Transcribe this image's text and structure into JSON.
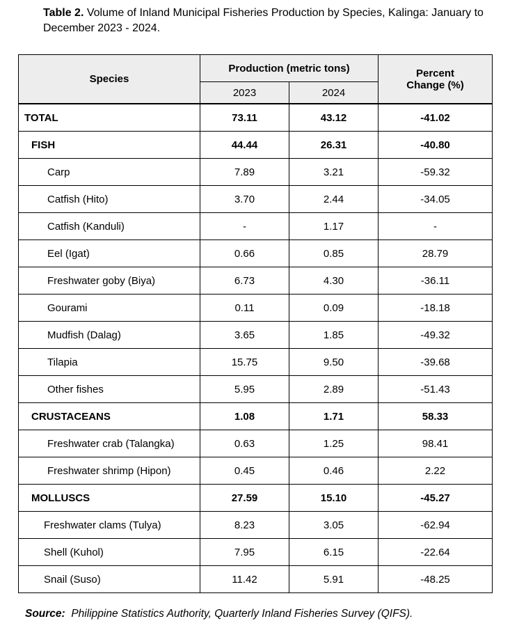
{
  "title": {
    "label": "Table 2.",
    "text": "Volume of Inland Municipal Fisheries Production by Species, Kalinga: January to December 2023 - 2024."
  },
  "table": {
    "headers": {
      "species": "Species",
      "production": "Production (metric tons)",
      "year1": "2023",
      "year2": "2024",
      "percent_change": "Percent Change (%)"
    },
    "rows": [
      {
        "level": "total",
        "species": "TOTAL",
        "y2023": "73.11",
        "y2024": "43.12",
        "change": "-41.02"
      },
      {
        "level": "group",
        "species": "FISH",
        "y2023": "44.44",
        "y2024": "26.31",
        "change": "-40.80"
      },
      {
        "level": "item",
        "species": "Carp",
        "y2023": "7.89",
        "y2024": "3.21",
        "change": "-59.32"
      },
      {
        "level": "item",
        "species": "Catfish (Hito)",
        "y2023": "3.70",
        "y2024": "2.44",
        "change": "-34.05"
      },
      {
        "level": "item",
        "species": "Catfish (Kanduli)",
        "y2023": "-",
        "y2024": "1.17",
        "change": "-"
      },
      {
        "level": "item",
        "species": "Eel (Igat)",
        "y2023": "0.66",
        "y2024": "0.85",
        "change": "28.79"
      },
      {
        "level": "item",
        "species": "Freshwater goby (Biya)",
        "y2023": "6.73",
        "y2024": "4.30",
        "change": "-36.11"
      },
      {
        "level": "item",
        "species": "Gourami",
        "y2023": "0.11",
        "y2024": "0.09",
        "change": "-18.18"
      },
      {
        "level": "item",
        "species": "Mudfish (Dalag)",
        "y2023": "3.65",
        "y2024": "1.85",
        "change": "-49.32"
      },
      {
        "level": "item",
        "species": "Tilapia",
        "y2023": "15.75",
        "y2024": "9.50",
        "change": "-39.68"
      },
      {
        "level": "item",
        "species": "Other fishes",
        "y2023": "5.95",
        "y2024": "2.89",
        "change": "-51.43"
      },
      {
        "level": "group",
        "species": "CRUSTACEANS",
        "y2023": "1.08",
        "y2024": "1.71",
        "change": "58.33"
      },
      {
        "level": "item",
        "species": "Freshwater crab (Talangka)",
        "y2023": "0.63",
        "y2024": "1.25",
        "change": "98.41"
      },
      {
        "level": "item",
        "species": "Freshwater shrimp (Hipon)",
        "y2023": "0.45",
        "y2024": "0.46",
        "change": "2.22"
      },
      {
        "level": "group",
        "species": "MOLLUSCS",
        "y2023": "27.59",
        "y2024": "15.10",
        "change": "-45.27"
      },
      {
        "level": "item2",
        "species": "Freshwater clams (Tulya)",
        "y2023": "8.23",
        "y2024": "3.05",
        "change": "-62.94"
      },
      {
        "level": "item2",
        "species": "Shell (Kuhol)",
        "y2023": "7.95",
        "y2024": "6.15",
        "change": "-22.64"
      },
      {
        "level": "item2",
        "species": "Snail (Suso)",
        "y2023": "11.42",
        "y2024": "5.91",
        "change": "-48.25"
      }
    ]
  },
  "source": {
    "label": "Source:",
    "text": "Philippine Statistics Authority, Quarterly Inland Fisheries Survey (QIFS)."
  }
}
